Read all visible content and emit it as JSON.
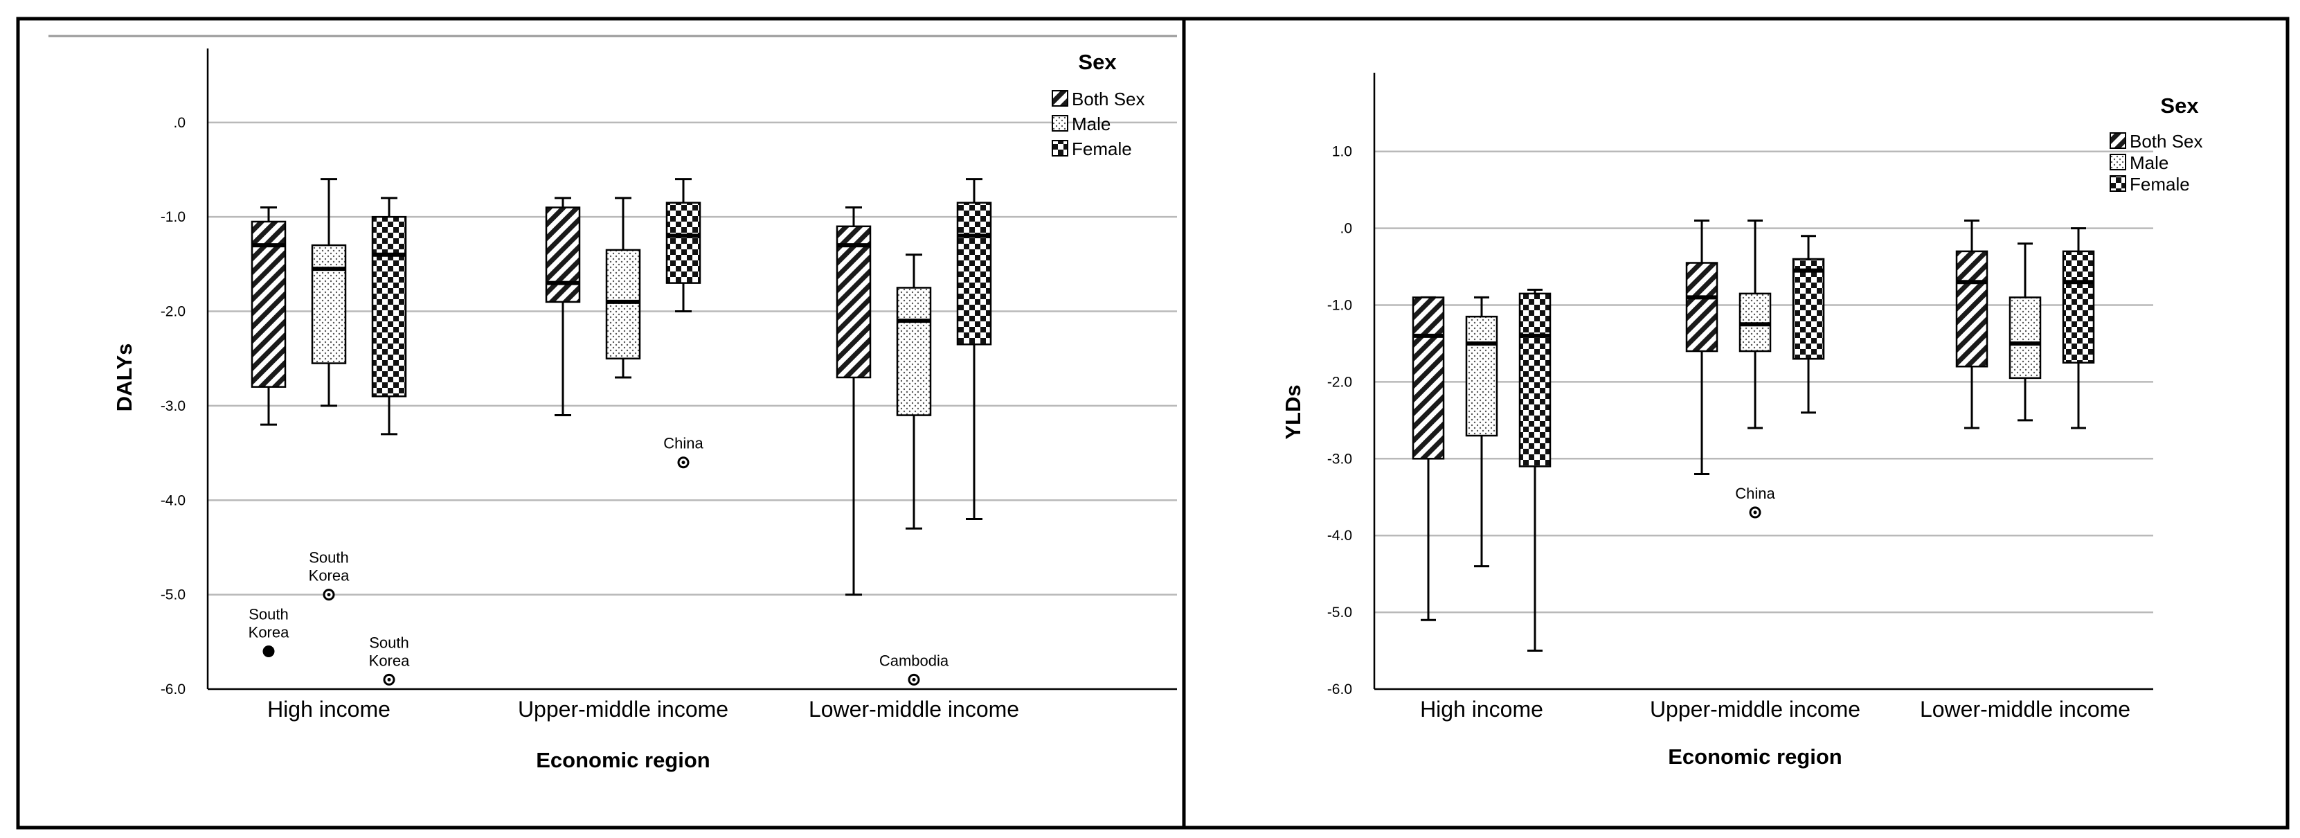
{
  "colors": {
    "grid": "#b9b9b9",
    "box_edge": "#000000",
    "background": "#ffffff",
    "frame": "#000000"
  },
  "chart_data": [
    {
      "type": "boxplot",
      "title": "",
      "xlabel": "Economic region",
      "ylabel": "DALYs",
      "ylim": [
        -6.0,
        0.6
      ],
      "yticks": [
        ".0",
        "-1.0",
        "-2.0",
        "-3.0",
        "-4.0",
        "-5.0",
        "-6.0"
      ],
      "categories": [
        "High income",
        "Upper-middle income",
        "Lower-middle income"
      ],
      "legend": {
        "title": "Sex",
        "entries": [
          "Both Sex",
          "Male",
          "Female"
        ],
        "position": "top-right"
      },
      "series": [
        {
          "name": "Both Sex",
          "pattern": "stripes",
          "boxes": [
            {
              "min": -3.2,
              "q1": -2.8,
              "median": -1.3,
              "q3": -1.05,
              "max": -0.9
            },
            {
              "min": -3.1,
              "q1": -1.9,
              "median": -1.7,
              "q3": -0.9,
              "max": -0.8
            },
            {
              "min": -5.0,
              "q1": -2.7,
              "median": -1.3,
              "q3": -1.1,
              "max": -0.9
            }
          ]
        },
        {
          "name": "Male",
          "pattern": "dots",
          "boxes": [
            {
              "min": -3.0,
              "q1": -2.55,
              "median": -1.55,
              "q3": -1.3,
              "max": -0.6
            },
            {
              "min": -2.7,
              "q1": -2.5,
              "median": -1.9,
              "q3": -1.35,
              "max": -0.8
            },
            {
              "min": -4.3,
              "q1": -3.1,
              "median": -2.1,
              "q3": -1.75,
              "max": -1.4
            }
          ]
        },
        {
          "name": "Female",
          "pattern": "checker",
          "boxes": [
            {
              "min": -3.3,
              "q1": -2.9,
              "median": -1.4,
              "q3": -1.0,
              "max": -0.8
            },
            {
              "min": -2.0,
              "q1": -1.7,
              "median": -1.2,
              "q3": -0.85,
              "max": -0.6
            },
            {
              "min": -4.2,
              "q1": -2.35,
              "median": -1.2,
              "q3": -0.85,
              "max": -0.6
            }
          ]
        }
      ],
      "outliers": [
        {
          "series": "Both Sex",
          "category": "High income",
          "value": -5.6,
          "label": [
            "South",
            "Korea"
          ],
          "filled": true
        },
        {
          "series": "Male",
          "category": "High income",
          "value": -5.0,
          "label": [
            "South",
            "Korea"
          ],
          "filled": false
        },
        {
          "series": "Female",
          "category": "High income",
          "value": -5.9,
          "label": [
            "South",
            "Korea"
          ],
          "filled": false
        },
        {
          "series": "Female",
          "category": "Upper-middle income",
          "value": -3.6,
          "label": [
            "China"
          ],
          "filled": false
        },
        {
          "series": "Male",
          "category": "Lower-middle income",
          "value": -5.9,
          "label": [
            "Cambodia"
          ],
          "filled": false
        }
      ]
    },
    {
      "type": "boxplot",
      "title": "",
      "xlabel": "Economic region",
      "ylabel": "YLDs",
      "ylim": [
        -6.0,
        1.8
      ],
      "yticks": [
        "1.0",
        ".0",
        "-1.0",
        "-2.0",
        "-3.0",
        "-4.0",
        "-5.0",
        "-6.0"
      ],
      "categories": [
        "High income",
        "Upper-middle income",
        "Lower-middle income"
      ],
      "legend": {
        "title": "Sex",
        "entries": [
          "Both Sex",
          "Male",
          "Female"
        ],
        "position": "top-right"
      },
      "series": [
        {
          "name": "Both Sex",
          "pattern": "stripes",
          "boxes": [
            {
              "min": -5.1,
              "q1": -3.0,
              "median": -1.4,
              "q3": -0.9,
              "max": -0.9
            },
            {
              "min": -3.2,
              "q1": -1.6,
              "median": -0.9,
              "q3": -0.45,
              "max": 0.1
            },
            {
              "min": -2.6,
              "q1": -1.8,
              "median": -0.7,
              "q3": -0.3,
              "max": 0.1
            }
          ]
        },
        {
          "name": "Male",
          "pattern": "dots",
          "boxes": [
            {
              "min": -4.4,
              "q1": -2.7,
              "median": -1.5,
              "q3": -1.15,
              "max": -0.9
            },
            {
              "min": -2.6,
              "q1": -1.6,
              "median": -1.25,
              "q3": -0.85,
              "max": 0.1
            },
            {
              "min": -2.5,
              "q1": -1.95,
              "median": -1.5,
              "q3": -0.9,
              "max": -0.2
            }
          ]
        },
        {
          "name": "Female",
          "pattern": "checker",
          "boxes": [
            {
              "min": -5.5,
              "q1": -3.1,
              "median": -1.4,
              "q3": -0.85,
              "max": -0.8
            },
            {
              "min": -2.4,
              "q1": -1.7,
              "median": -0.55,
              "q3": -0.4,
              "max": -0.1
            },
            {
              "min": -2.6,
              "q1": -1.75,
              "median": -0.7,
              "q3": -0.3,
              "max": 0.0
            }
          ]
        }
      ],
      "outliers": [
        {
          "series": "Male",
          "category": "Upper-middle income",
          "value": -3.7,
          "label": [
            "China"
          ],
          "filled": false
        }
      ]
    }
  ]
}
